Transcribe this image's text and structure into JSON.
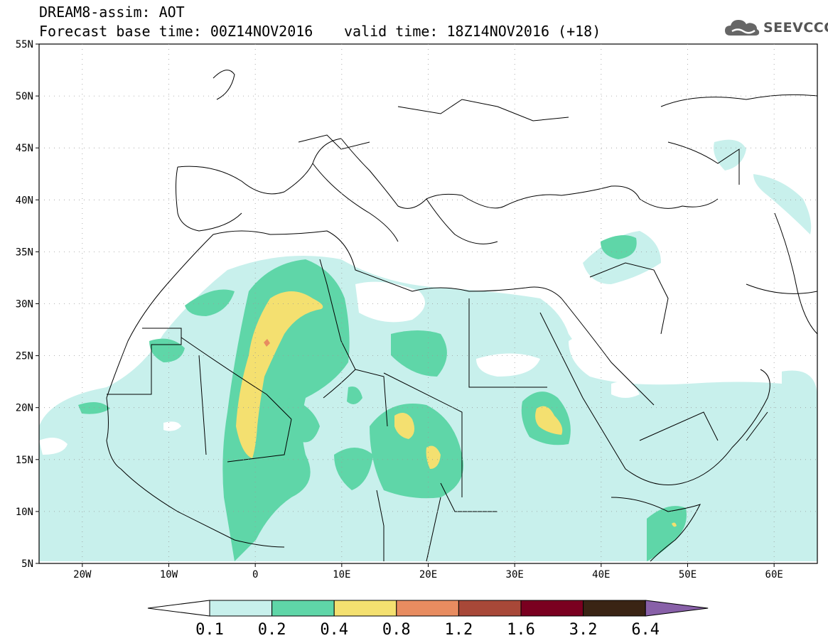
{
  "header": {
    "line1": "DREAM8-assim: AOT",
    "line2": "Forecast base time: 00Z14NOV2016",
    "valid": "valid time: 18Z14NOV2016 (+18)"
  },
  "logo": {
    "text": "SEEVCCC",
    "icon": "cloud-icon"
  },
  "axes": {
    "lon_labels": [
      "20W",
      "10W",
      "0",
      "10E",
      "20E",
      "30E",
      "40E",
      "50E",
      "60E"
    ],
    "lat_labels": [
      "55N",
      "50N",
      "45N",
      "40N",
      "35N",
      "30N",
      "25N",
      "20N",
      "15N",
      "10N",
      "5N"
    ],
    "lon_range": [
      -25,
      65
    ],
    "lat_range": [
      5,
      55
    ]
  },
  "colorbar": {
    "labels": [
      "0.1",
      "0.2",
      "0.4",
      "0.8",
      "1.2",
      "1.6",
      "3.2",
      "6.4"
    ],
    "colors": [
      "#ffffff",
      "#c8f0ec",
      "#5fd6a8",
      "#f4e070",
      "#e88c60",
      "#a84838",
      "#7a0020",
      "#3a2414",
      "#8860a8"
    ]
  },
  "palette": {
    "level1": "#c8f0ec",
    "level2": "#5fd6a8",
    "level3": "#f4e070",
    "level4": "#e88c60",
    "border": "#000000"
  }
}
